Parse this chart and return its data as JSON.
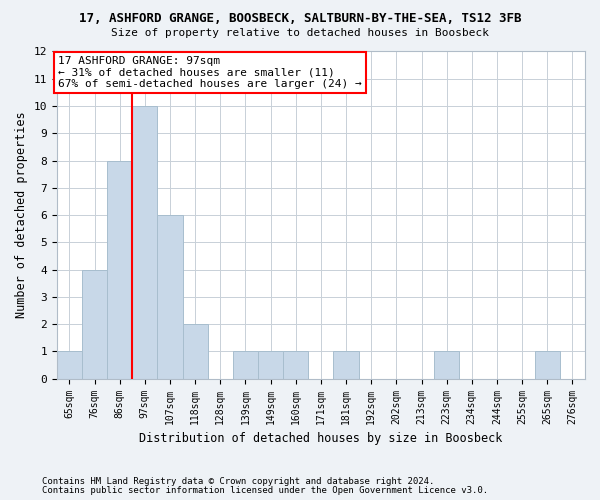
{
  "title1": "17, ASHFORD GRANGE, BOOSBECK, SALTBURN-BY-THE-SEA, TS12 3FB",
  "title2": "Size of property relative to detached houses in Boosbeck",
  "xlabel": "Distribution of detached houses by size in Boosbeck",
  "ylabel": "Number of detached properties",
  "bins": [
    "65sqm",
    "76sqm",
    "86sqm",
    "97sqm",
    "107sqm",
    "118sqm",
    "128sqm",
    "139sqm",
    "149sqm",
    "160sqm",
    "171sqm",
    "181sqm",
    "192sqm",
    "202sqm",
    "213sqm",
    "223sqm",
    "234sqm",
    "244sqm",
    "255sqm",
    "265sqm",
    "276sqm"
  ],
  "values": [
    1,
    4,
    8,
    10,
    6,
    2,
    0,
    1,
    1,
    1,
    0,
    1,
    0,
    0,
    0,
    1,
    0,
    0,
    0,
    1,
    0
  ],
  "bar_color": "#c8d8e8",
  "bar_edgecolor": "#a8bece",
  "vline_index": 3,
  "annotation_text": "17 ASHFORD GRANGE: 97sqm\n← 31% of detached houses are smaller (11)\n67% of semi-detached houses are larger (24) →",
  "annotation_box_color": "white",
  "annotation_box_edgecolor": "red",
  "vline_color": "red",
  "ylim": [
    0,
    12
  ],
  "yticks": [
    0,
    1,
    2,
    3,
    4,
    5,
    6,
    7,
    8,
    9,
    10,
    11,
    12
  ],
  "footer1": "Contains HM Land Registry data © Crown copyright and database right 2024.",
  "footer2": "Contains public sector information licensed under the Open Government Licence v3.0.",
  "bg_color": "#eef2f6",
  "plot_bg_color": "#ffffff",
  "grid_color": "#c8d0d8"
}
